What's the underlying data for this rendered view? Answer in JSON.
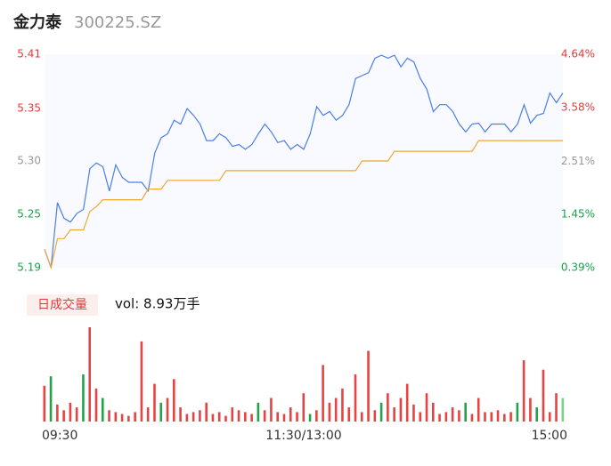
{
  "chart_data": {
    "type": "line",
    "title": "金力泰",
    "subtitle": "300225.SZ",
    "xlim": [
      0,
      80
    ],
    "xticks": [
      {
        "value": 0,
        "label": "09:30"
      },
      {
        "value": 40,
        "label": "11:30/13:00"
      },
      {
        "value": 80,
        "label": "15:00"
      }
    ],
    "ylim": [
      5.19,
      5.41
    ],
    "yticks": [
      {
        "value": 5.19,
        "label": "5.19"
      },
      {
        "value": 5.245,
        "label": "5.25"
      },
      {
        "value": 5.3,
        "label": "5.30"
      },
      {
        "value": 5.354,
        "label": "5.35"
      },
      {
        "value": 5.41,
        "label": "5.41"
      }
    ],
    "y2lim": [
      0.39,
      4.64
    ],
    "y2ticks": [
      {
        "value": 0.39,
        "label": "0.39%"
      },
      {
        "value": 1.45,
        "label": "1.45%"
      },
      {
        "value": 2.51,
        "label": "2.51%"
      },
      {
        "value": 3.58,
        "label": "3.58%"
      },
      {
        "value": 4.64,
        "label": "4.64%"
      }
    ],
    "ytick_colors": [
      "#16a34a",
      "#16a34a",
      "#999999",
      "#e23b3b",
      "#e23b3b"
    ],
    "series": [
      {
        "color": "#4a7ee8",
        "values": [
          5.209,
          5.19,
          5.257,
          5.241,
          5.237,
          5.246,
          5.25,
          5.292,
          5.298,
          5.294,
          5.269,
          5.296,
          5.283,
          5.278,
          5.278,
          5.278,
          5.269,
          5.308,
          5.324,
          5.328,
          5.342,
          5.338,
          5.354,
          5.347,
          5.338,
          5.321,
          5.321,
          5.328,
          5.324,
          5.315,
          5.317,
          5.312,
          5.317,
          5.328,
          5.338,
          5.33,
          5.319,
          5.321,
          5.312,
          5.317,
          5.312,
          5.328,
          5.356,
          5.347,
          5.351,
          5.342,
          5.347,
          5.358,
          5.385,
          5.388,
          5.391,
          5.406,
          5.409,
          5.406,
          5.409,
          5.397,
          5.406,
          5.402,
          5.385,
          5.374,
          5.351,
          5.358,
          5.358,
          5.351,
          5.338,
          5.33,
          5.338,
          5.339,
          5.33,
          5.338,
          5.338,
          5.338,
          5.33,
          5.338,
          5.358,
          5.339,
          5.347,
          5.349,
          5.37,
          5.36,
          5.37
        ]
      },
      {
        "color": "#f0a830",
        "values": [
          5.209,
          5.19,
          5.22,
          5.22,
          5.229,
          5.229,
          5.229,
          5.248,
          5.253,
          5.26,
          5.26,
          5.26,
          5.26,
          5.26,
          5.26,
          5.26,
          5.271,
          5.271,
          5.271,
          5.28,
          5.28,
          5.28,
          5.28,
          5.28,
          5.28,
          5.28,
          5.28,
          5.28,
          5.29,
          5.29,
          5.29,
          5.29,
          5.29,
          5.29,
          5.29,
          5.29,
          5.29,
          5.29,
          5.29,
          5.29,
          5.29,
          5.29,
          5.29,
          5.29,
          5.29,
          5.29,
          5.29,
          5.29,
          5.29,
          5.3,
          5.3,
          5.3,
          5.3,
          5.3,
          5.31,
          5.31,
          5.31,
          5.31,
          5.31,
          5.31,
          5.31,
          5.31,
          5.31,
          5.31,
          5.31,
          5.31,
          5.31,
          5.321,
          5.321,
          5.321,
          5.321,
          5.321,
          5.321,
          5.321,
          5.321,
          5.321,
          5.321,
          5.321,
          5.321,
          5.321,
          5.321
        ]
      }
    ],
    "volume_label": "日成交量",
    "volume_text": "vol: 8.93万手",
    "volume": {
      "ylim": [
        0,
        100
      ],
      "values": [
        38,
        48,
        18,
        12,
        20,
        15,
        50,
        100,
        35,
        25,
        12,
        10,
        8,
        6,
        10,
        85,
        15,
        40,
        20,
        25,
        45,
        15,
        8,
        10,
        12,
        20,
        8,
        10,
        6,
        15,
        12,
        10,
        8,
        20,
        12,
        25,
        10,
        8,
        15,
        10,
        30,
        8,
        12,
        60,
        20,
        25,
        35,
        15,
        50,
        10,
        75,
        12,
        20,
        30,
        15,
        25,
        40,
        18,
        10,
        30,
        20,
        8,
        10,
        15,
        12,
        20,
        8,
        25,
        10,
        10,
        12,
        8,
        10,
        20,
        65,
        25,
        15,
        55,
        10,
        30,
        25
      ],
      "colors": [
        "#e84343",
        "#22a34a",
        "#e84343",
        "#e84343",
        "#e84343",
        "#e84343",
        "#22a34a",
        "#e84343",
        "#e84343",
        "#22a34a",
        "#e84343",
        "#e84343",
        "#e84343",
        "#e84343",
        "#e84343",
        "#e84343",
        "#e84343",
        "#e84343",
        "#22a34a",
        "#e84343",
        "#e84343",
        "#e84343",
        "#e84343",
        "#e84343",
        "#e84343",
        "#e84343",
        "#e84343",
        "#e84343",
        "#e84343",
        "#e84343",
        "#e84343",
        "#e84343",
        "#e84343",
        "#22a34a",
        "#e84343",
        "#e84343",
        "#e84343",
        "#e84343",
        "#e84343",
        "#e84343",
        "#e84343",
        "#22a34a",
        "#e84343",
        "#e84343",
        "#e84343",
        "#e84343",
        "#e84343",
        "#e84343",
        "#e84343",
        "#e84343",
        "#e84343",
        "#e84343",
        "#22a34a",
        "#e84343",
        "#e84343",
        "#e84343",
        "#e84343",
        "#e84343",
        "#e84343",
        "#e84343",
        "#e84343",
        "#e84343",
        "#e84343",
        "#e84343",
        "#e84343",
        "#22a34a",
        "#e84343",
        "#e84343",
        "#e84343",
        "#e84343",
        "#e84343",
        "#e84343",
        "#e84343",
        "#22a34a",
        "#e84343",
        "#e84343",
        "#22a34a",
        "#e84343",
        "#e84343",
        "#e84343",
        "#7fd08f"
      ]
    }
  }
}
